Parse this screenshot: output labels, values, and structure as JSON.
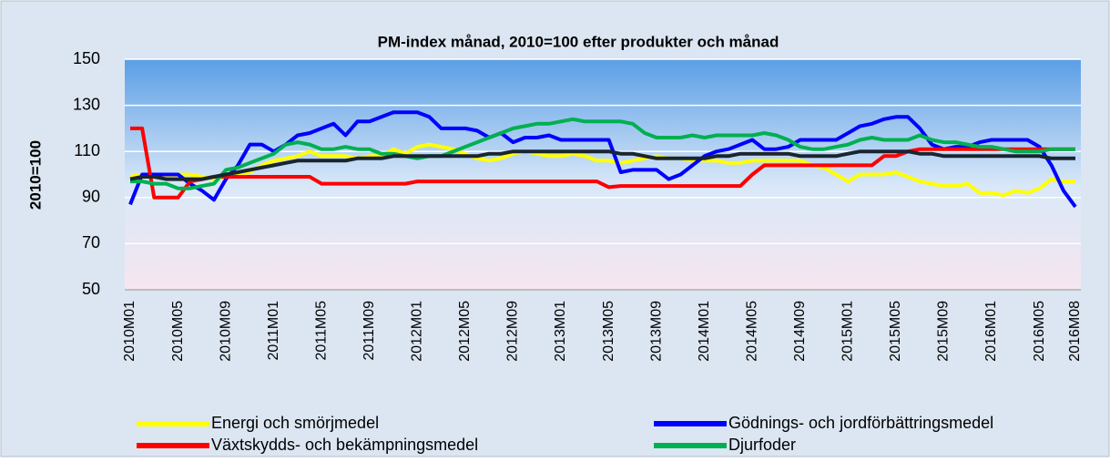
{
  "chart_data": {
    "type": "line",
    "title": "PM-index månad, 2010=100 efter produkter och månad",
    "ylabel": "2010=100",
    "categories": [
      "2010M01",
      null,
      null,
      null,
      "2010M05",
      null,
      null,
      null,
      "2010M09",
      null,
      null,
      null,
      "2011M01",
      null,
      null,
      null,
      "2011M05",
      null,
      null,
      null,
      "2011M09",
      null,
      null,
      null,
      "2012M01",
      null,
      null,
      null,
      "2012M05",
      null,
      null,
      null,
      "2012M09",
      null,
      null,
      null,
      "2013M01",
      null,
      null,
      null,
      "2013M05",
      null,
      null,
      null,
      "2013M09",
      null,
      null,
      null,
      "2014M01",
      null,
      null,
      null,
      "2014M05",
      null,
      null,
      null,
      "2014M09",
      null,
      null,
      null,
      "2015M01",
      null,
      null,
      null,
      "2015M05",
      null,
      null,
      null,
      "2015M09",
      null,
      null,
      null,
      "2016M01",
      null,
      null,
      null,
      "2016M05",
      null,
      null,
      "2016M08"
    ],
    "series": [
      {
        "name": "Energi och smörjmedel",
        "color": "#ffff00",
        "values": [
          99,
          100,
          99,
          99,
          100,
          100,
          99,
          98,
          99,
          100,
          101,
          104,
          106,
          107,
          108,
          110,
          108,
          108,
          108,
          107,
          108,
          108,
          111,
          109,
          112,
          113,
          112,
          111,
          109,
          107,
          106,
          107,
          109,
          110,
          109,
          108,
          108,
          109,
          108,
          106,
          106,
          105,
          106,
          107,
          108,
          107,
          107,
          106,
          106,
          106,
          105,
          105,
          106,
          106,
          106,
          106,
          106,
          104,
          103,
          100,
          97,
          100,
          100,
          100,
          101,
          99,
          97,
          96,
          95,
          95,
          96,
          92,
          92,
          91,
          93,
          92,
          94,
          98,
          97,
          97
        ]
      },
      {
        "name": "Gödnings- och jordförbättringsmedel",
        "color": "#0000ff",
        "values": [
          87,
          100,
          100,
          100,
          100,
          96,
          93,
          89,
          98,
          104,
          113,
          113,
          110,
          113,
          117,
          118,
          120,
          122,
          117,
          123,
          123,
          125,
          127,
          127,
          127,
          125,
          120,
          120,
          120,
          119,
          116,
          118,
          114,
          116,
          116,
          117,
          115,
          115,
          115,
          115,
          115,
          101,
          102,
          102,
          102,
          98,
          100,
          104,
          108,
          110,
          111,
          113,
          115,
          111,
          111,
          112,
          115,
          115,
          115,
          115,
          118,
          121,
          122,
          124,
          125,
          125,
          120,
          113,
          111,
          112,
          112,
          114,
          115,
          115,
          115,
          115,
          112,
          104,
          93,
          86
        ]
      },
      {
        "name": "Växtskydds- och bekämpningsmedel",
        "color": "#ff0000",
        "values": [
          120,
          120,
          90,
          90,
          90,
          97,
          98,
          99,
          99,
          99,
          99,
          99,
          99,
          99,
          99,
          99,
          96,
          96,
          96,
          96,
          96,
          96,
          96,
          96,
          97,
          97,
          97,
          97,
          97,
          97,
          97,
          97,
          97,
          97,
          97,
          97,
          97,
          97,
          97,
          97,
          94.5,
          95,
          95,
          95,
          95,
          95,
          95,
          95,
          95,
          95,
          95,
          95,
          100,
          104,
          104,
          104,
          104,
          104,
          104,
          104,
          104,
          104,
          104,
          108,
          108,
          110,
          111,
          111,
          111,
          111,
          111,
          111,
          111,
          111,
          111,
          111,
          111,
          111,
          111,
          111
        ]
      },
      {
        "name": "Djurfoder",
        "color": "#00b050",
        "values": [
          97,
          97,
          96,
          96,
          94,
          94,
          95,
          96,
          102,
          103,
          105,
          107,
          109,
          113,
          114,
          113,
          111,
          111,
          112,
          111,
          111,
          109,
          109,
          108,
          107,
          108,
          108,
          110,
          112,
          114,
          116,
          118,
          120,
          121,
          122,
          122,
          123,
          124,
          123,
          123,
          123,
          123,
          122,
          118,
          116,
          116,
          116,
          117,
          116,
          117,
          117,
          117,
          117,
          118,
          117,
          115,
          112,
          111,
          111,
          112,
          113,
          115,
          116,
          115,
          115,
          115,
          117,
          115,
          114,
          114,
          113,
          112,
          112,
          111,
          110,
          110,
          110,
          111,
          111,
          111
        ]
      },
      {
        "color": "#1a2530",
        "values": [
          98,
          99,
          99,
          98,
          98,
          98,
          98,
          99,
          100,
          101,
          102,
          103,
          104,
          105,
          106,
          106,
          106,
          106,
          106,
          107,
          107,
          107,
          108,
          108,
          108,
          108,
          108,
          108,
          108,
          108,
          109,
          109,
          110,
          110,
          110,
          110,
          110,
          110,
          110,
          110,
          110,
          109,
          109,
          108,
          107,
          107,
          107,
          107,
          107,
          108,
          108,
          109,
          109,
          109,
          109,
          109,
          108,
          108,
          108,
          108,
          109,
          110,
          110,
          110,
          110,
          110,
          109,
          109,
          108,
          108,
          108,
          108,
          108,
          108,
          108,
          108,
          108,
          107,
          107,
          107
        ]
      }
    ],
    "ylim": [
      50,
      150
    ],
    "yticks": [
      50,
      70,
      90,
      110,
      130,
      150
    ],
    "grid": true
  }
}
